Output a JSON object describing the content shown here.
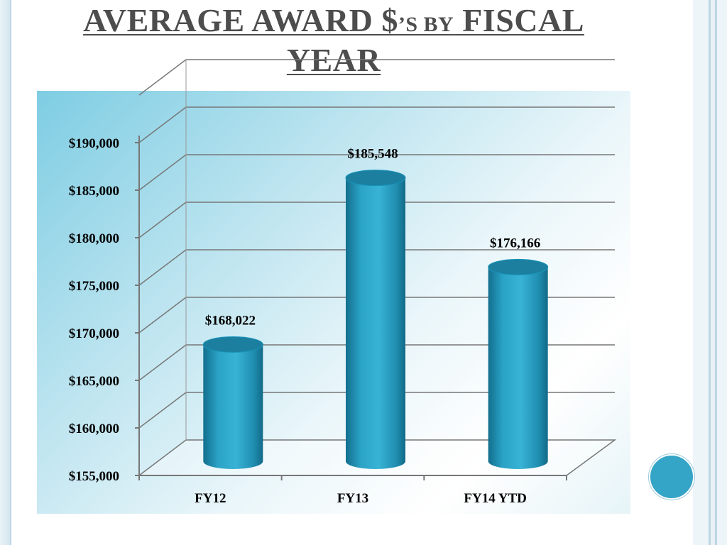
{
  "slide": {
    "title_part1": "AVERAGE AWARD $",
    "title_part2": "’S BY",
    "title_part3": " FISCAL",
    "title_line2": "YEAR"
  },
  "chart_data": {
    "type": "bar",
    "title": "Average Award $'s by Fiscal Year",
    "categories": [
      "FY12",
      "FY13",
      "FY14 YTD"
    ],
    "values": [
      168022,
      185548,
      176166
    ],
    "data_labels": [
      "$168,022",
      "$185,548",
      "$176,166"
    ],
    "ylim": [
      155000,
      195000
    ],
    "ytick_values": [
      155000,
      160000,
      165000,
      170000,
      175000,
      180000,
      185000,
      190000
    ],
    "ytick_labels": [
      "$155,000",
      "$160,000",
      "$165,000",
      "$170,000",
      "$175,000",
      "$180,000",
      "$185,000",
      "$190,000"
    ],
    "grid": true,
    "legend": "none",
    "xlabel": "",
    "ylabel": "",
    "colors": {
      "bar": "#2aa3c6",
      "bar_dark": "#136f8e",
      "bar_top": "#1c7fa0"
    }
  }
}
